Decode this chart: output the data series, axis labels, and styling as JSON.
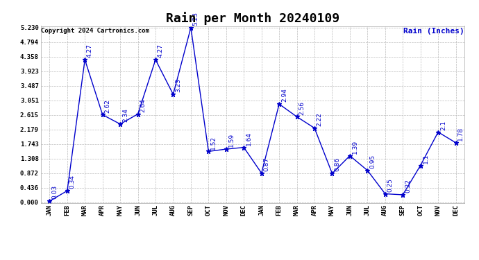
{
  "title": "Rain per Month 20240109",
  "copyright_text": "Copyright 2024 Cartronics.com",
  "legend_label": "Rain (Inches)",
  "months": [
    "JAN",
    "FEB",
    "MAR",
    "APR",
    "MAY",
    "JUN",
    "JUL",
    "AUG",
    "SEP",
    "OCT",
    "NOV",
    "DEC",
    "JAN",
    "FEB",
    "MAR",
    "APR",
    "MAY",
    "JUN",
    "JUL",
    "AUG",
    "SEP",
    "OCT",
    "NOV",
    "DEC"
  ],
  "values": [
    0.03,
    0.34,
    4.27,
    2.62,
    2.34,
    2.64,
    4.27,
    3.23,
    5.23,
    1.52,
    1.59,
    1.64,
    0.87,
    2.94,
    2.56,
    2.22,
    0.86,
    1.39,
    0.95,
    0.25,
    0.22,
    1.1,
    2.1,
    1.78
  ],
  "line_color": "#0000cc",
  "marker_color": "#0000cc",
  "bg_color": "#ffffff",
  "grid_color": "#bbbbbb",
  "text_color": "#000000",
  "title_color": "#000000",
  "legend_color": "#0000cc",
  "ylim_min": 0.0,
  "ylim_max": 5.23,
  "yticks": [
    0.0,
    0.436,
    0.872,
    1.308,
    1.743,
    2.179,
    2.615,
    3.051,
    3.487,
    3.923,
    4.358,
    4.794,
    5.23
  ],
  "title_fontsize": 13,
  "label_fontsize": 6.5,
  "annot_fontsize": 6.5,
  "copyright_fontsize": 6.5,
  "legend_fontsize": 8
}
